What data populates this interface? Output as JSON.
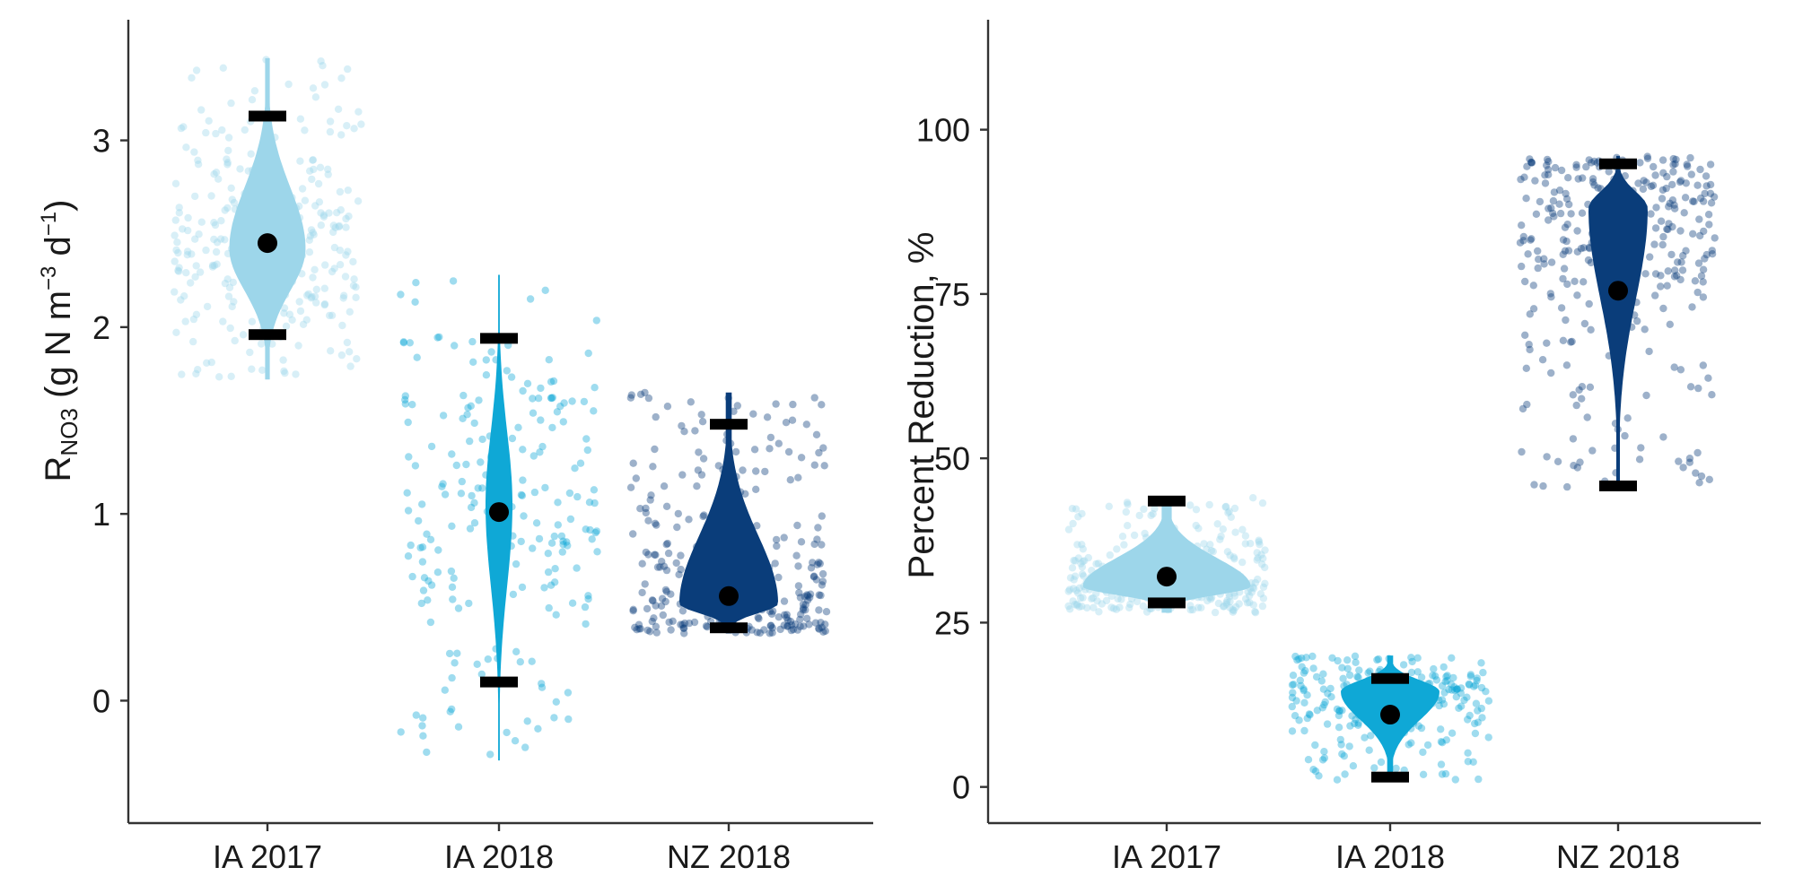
{
  "chart_data": [
    {
      "type": "violin",
      "ylabel": {
        "main": "R",
        "sub": "NO3",
        "units_open": " (g N  m",
        "exp1": "−3",
        "units_mid": "  d",
        "exp2": "−1",
        "units_close": ")"
      },
      "xlabel": "",
      "ylim": [
        -0.7,
        3.65
      ],
      "yticks": [
        0,
        1,
        2,
        3
      ],
      "grid": false,
      "categories": [
        "IA 2017",
        "IA 2018",
        "NZ 2018"
      ],
      "series": [
        {
          "category": "IA 2017",
          "color": "#9dd6ea",
          "median": 2.45,
          "range": [
            1.96,
            3.13
          ],
          "violin_extent": [
            1.72,
            3.44
          ],
          "violin_mode": 2.42,
          "points_range": [
            1.72,
            3.44
          ]
        },
        {
          "category": "IA 2018",
          "color": "#0fa8d6",
          "median": 1.01,
          "range": [
            0.1,
            1.94
          ],
          "violin_extent": [
            -0.32,
            2.28
          ],
          "violin_mode": 1.05,
          "points_range": [
            -0.32,
            2.28
          ]
        },
        {
          "category": "NZ 2018",
          "color": "#0a3d7a",
          "median": 0.56,
          "range": [
            0.39,
            1.48
          ],
          "violin_extent": [
            0.36,
            1.65
          ],
          "violin_mode": 0.52,
          "points_range": [
            0.36,
            1.65
          ]
        }
      ]
    },
    {
      "type": "violin",
      "ylabel": "Percent Reduction, %",
      "xlabel": "",
      "ylim": [
        -5,
        115
      ],
      "yticks": [
        0,
        25,
        50,
        75,
        100
      ],
      "grid": false,
      "categories": [
        "IA 2017",
        "IA 2018",
        "NZ 2018"
      ],
      "series": [
        {
          "category": "IA 2017",
          "color": "#9dd6ea",
          "median": 32,
          "range": [
            28,
            43.5
          ],
          "violin_extent": [
            26.5,
            44
          ],
          "violin_mode": 30.5,
          "points_range": [
            26.5,
            44
          ]
        },
        {
          "category": "IA 2018",
          "color": "#0fa8d6",
          "median": 11,
          "range": [
            1.5,
            16.5
          ],
          "violin_extent": [
            1,
            20
          ],
          "violin_mode": 14.5,
          "points_range": [
            1,
            20
          ]
        },
        {
          "category": "NZ 2018",
          "color": "#0a3d7a",
          "median": 75.5,
          "range": [
            45.8,
            94.8
          ],
          "violin_extent": [
            45,
            96
          ],
          "violin_mode": 88,
          "points_range": [
            45,
            96
          ]
        }
      ]
    }
  ]
}
